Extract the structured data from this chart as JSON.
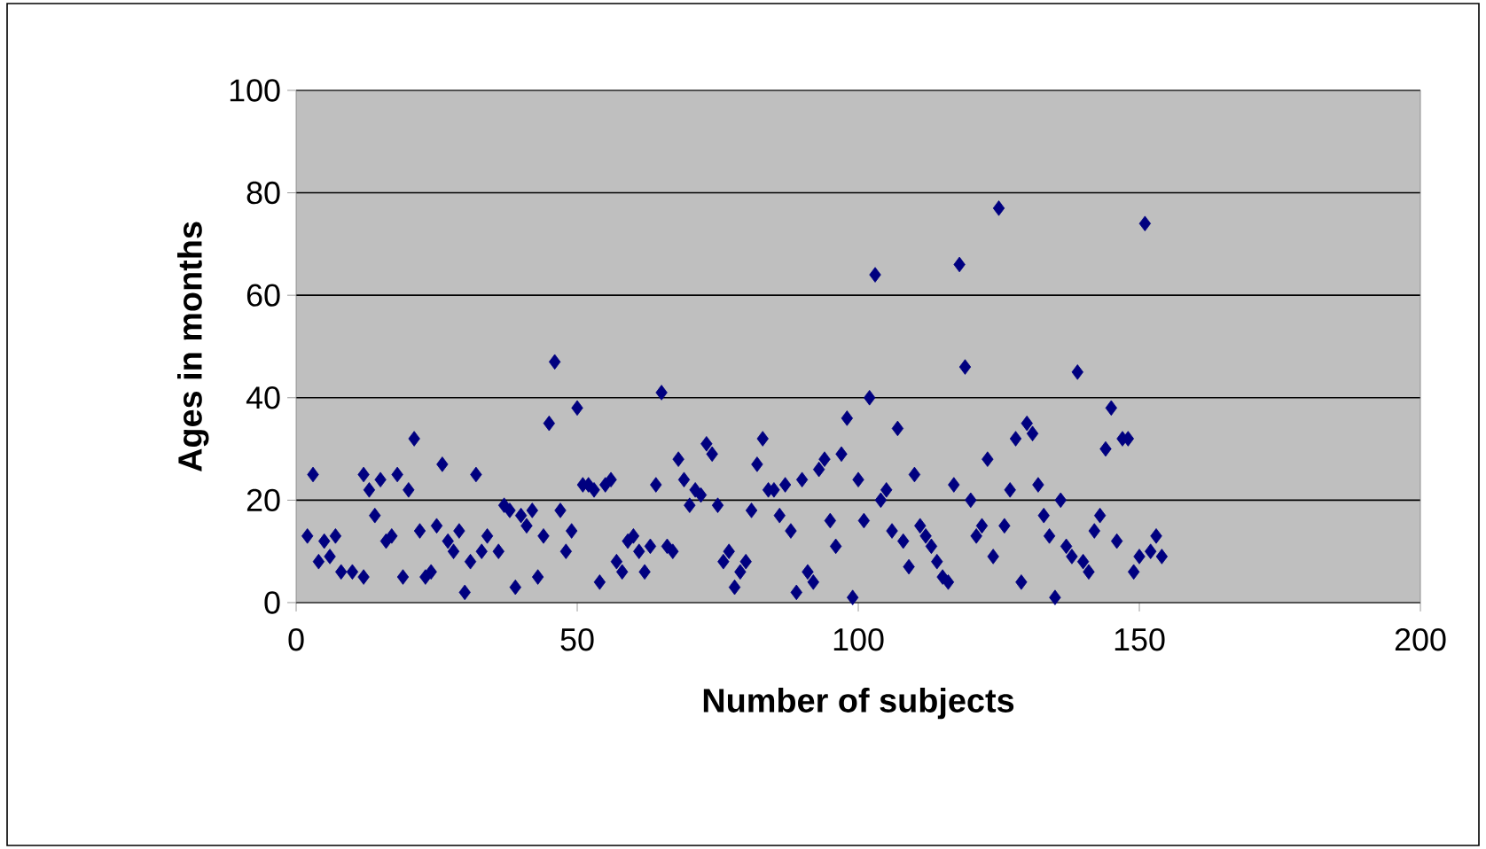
{
  "chart_data": {
    "type": "scatter",
    "xlabel": "Number of subjects",
    "ylabel": "Ages in months",
    "xlim": [
      0,
      200
    ],
    "xticks": [
      0,
      50,
      100,
      150,
      200
    ],
    "ylim": [
      0,
      100
    ],
    "yticks": [
      0,
      20,
      40,
      60,
      80,
      100
    ],
    "grid": "y",
    "marker": "diamond",
    "color": "#000080",
    "x": [
      2,
      3,
      4,
      5,
      6,
      7,
      8,
      10,
      12,
      12,
      13,
      14,
      15,
      16,
      17,
      18,
      19,
      20,
      21,
      22,
      23,
      24,
      25,
      26,
      27,
      28,
      29,
      30,
      31,
      32,
      33,
      34,
      36,
      37,
      38,
      39,
      40,
      41,
      42,
      43,
      44,
      45,
      46,
      47,
      48,
      49,
      50,
      51,
      52,
      53,
      54,
      55,
      56,
      57,
      58,
      59,
      60,
      61,
      62,
      63,
      64,
      65,
      66,
      67,
      68,
      69,
      70,
      71,
      72,
      73,
      74,
      75,
      76,
      77,
      78,
      79,
      80,
      81,
      82,
      83,
      84,
      85,
      86,
      87,
      88,
      89,
      90,
      91,
      92,
      93,
      94,
      95,
      96,
      97,
      98,
      99,
      100,
      101,
      102,
      103,
      104,
      105,
      106,
      107,
      108,
      109,
      110,
      111,
      112,
      113,
      114,
      115,
      116,
      117,
      118,
      119,
      120,
      121,
      122,
      123,
      124,
      125,
      126,
      127,
      128,
      129,
      130,
      131,
      132,
      133,
      134,
      135,
      136,
      137,
      138,
      139,
      140,
      141,
      142,
      143,
      144,
      145,
      146,
      147,
      148,
      149,
      150,
      151,
      152,
      153,
      154
    ],
    "values": [
      13,
      25,
      8,
      12,
      9,
      13,
      6,
      6,
      5,
      25,
      22,
      17,
      24,
      12,
      13,
      25,
      5,
      22,
      32,
      14,
      5,
      6,
      15,
      27,
      12,
      10,
      14,
      2,
      8,
      25,
      10,
      13,
      10,
      19,
      18,
      3,
      17,
      15,
      18,
      5,
      13,
      35,
      47,
      18,
      10,
      14,
      38,
      23,
      23,
      22,
      4,
      23,
      24,
      8,
      6,
      12,
      13,
      10,
      6,
      11,
      23,
      41,
      11,
      10,
      28,
      24,
      19,
      22,
      21,
      31,
      29,
      19,
      8,
      10,
      3,
      6,
      8,
      18,
      27,
      32,
      22,
      22,
      17,
      23,
      14,
      2,
      24,
      6,
      4,
      26,
      28,
      16,
      11,
      29,
      36,
      1,
      24,
      16,
      40,
      64,
      20,
      22,
      14,
      34,
      12,
      7,
      25,
      15,
      13,
      11,
      8,
      5,
      4,
      23,
      66,
      46,
      20,
      13,
      15,
      28,
      9,
      77,
      15,
      22,
      32,
      4,
      35,
      33,
      23,
      17,
      13,
      1,
      20,
      11,
      9,
      45,
      8,
      6,
      14,
      17,
      30,
      38,
      12,
      32,
      32,
      6,
      9,
      74,
      10,
      13,
      9
    ]
  }
}
